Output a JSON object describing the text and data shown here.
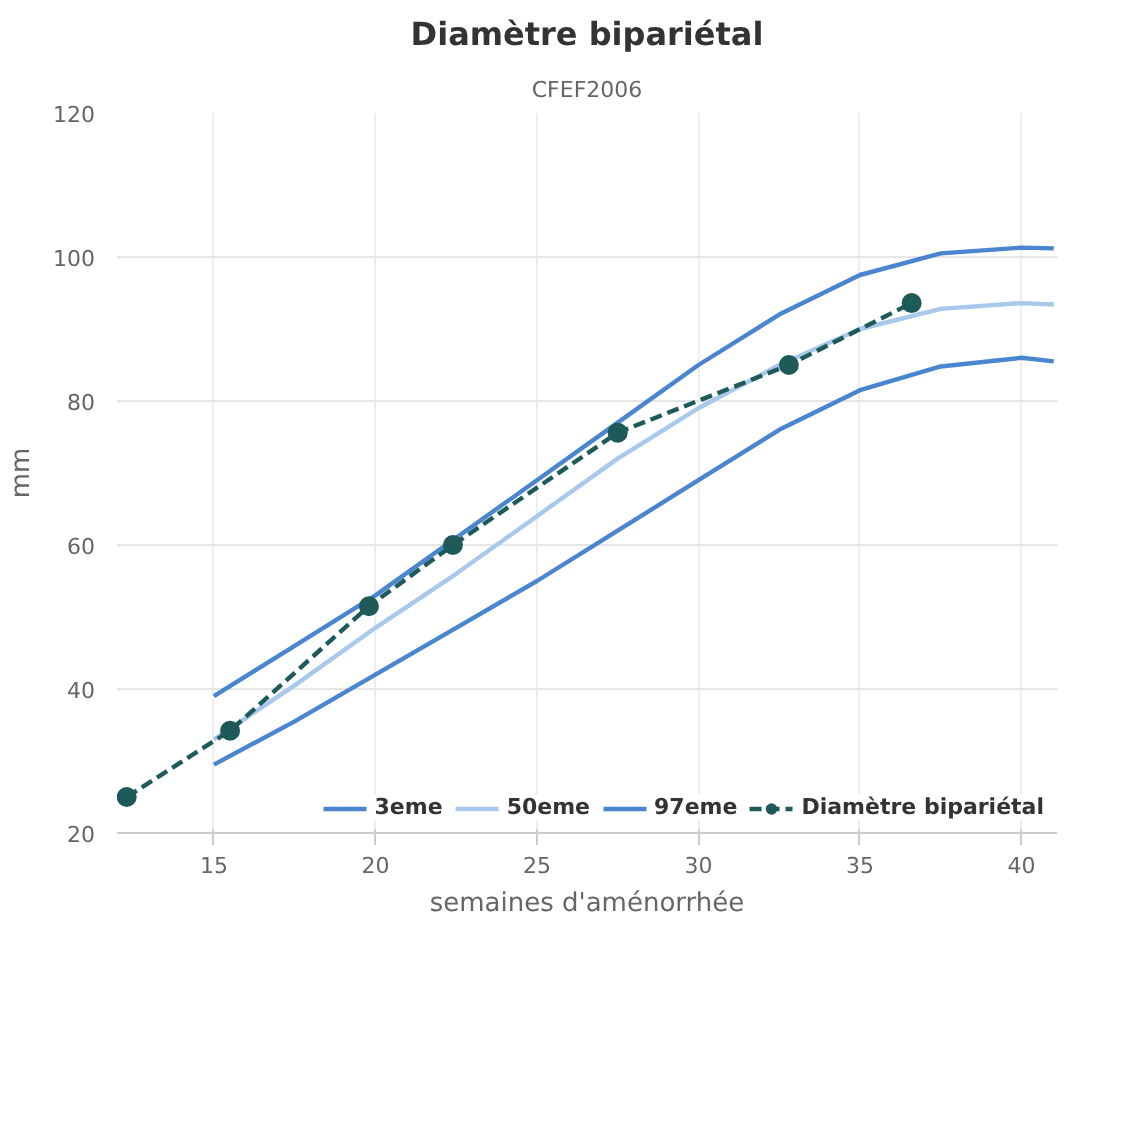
{
  "chart_data": {
    "type": "line",
    "title": "Diamètre bipariétal",
    "subtitle": "CFEF2006",
    "xlabel": "semaines d'aménorrhée",
    "ylabel": "mm",
    "xlim": [
      12,
      41.1
    ],
    "xticks": [
      15,
      20,
      25,
      30,
      35,
      40
    ],
    "ylim": [
      20,
      120
    ],
    "yticks": [
      20,
      40,
      60,
      80,
      100,
      120
    ],
    "grid": true,
    "legend": "bottom right",
    "series": [
      {
        "name": "3eme",
        "color": "#4a86d0",
        "x": [
          15,
          17.5,
          20,
          22.5,
          25,
          27.5,
          30,
          32.5,
          35,
          37.5,
          40,
          41
        ],
        "values": [
          29.5,
          35.5,
          42,
          48.5,
          55,
          62,
          69,
          76,
          81.5,
          84.8,
          86,
          85.5
        ],
        "marker": "none",
        "line_style": "solid"
      },
      {
        "name": "50eme",
        "color": "#a8c8ec",
        "x": [
          15,
          17.5,
          20,
          22.5,
          25,
          27.5,
          30,
          32.5,
          35,
          37.5,
          40,
          41
        ],
        "values": [
          33,
          40.5,
          48.5,
          56,
          64,
          72,
          79,
          85,
          90,
          92.8,
          93.6,
          93.4
        ],
        "marker": "none",
        "line_style": "solid"
      },
      {
        "name": "97eme",
        "color": "#4a86d0",
        "x": [
          15,
          17.5,
          20,
          22.5,
          25,
          27.5,
          30,
          32.5,
          35,
          37.5,
          40,
          41
        ],
        "values": [
          39,
          46,
          53,
          61,
          69,
          77,
          85,
          92,
          97.5,
          100.5,
          101.3,
          101.2
        ],
        "marker": "none",
        "line_style": "solid"
      },
      {
        "name": "Diamètre bipariétal",
        "color": "#1f5a5a",
        "x": [
          12.3,
          15.5,
          19.8,
          22.4,
          27.5,
          32.8,
          36.6
        ],
        "values": [
          25,
          34.2,
          51.5,
          60,
          75.6,
          85,
          93.6
        ],
        "marker": "circle",
        "line_style": "dashed"
      }
    ]
  }
}
